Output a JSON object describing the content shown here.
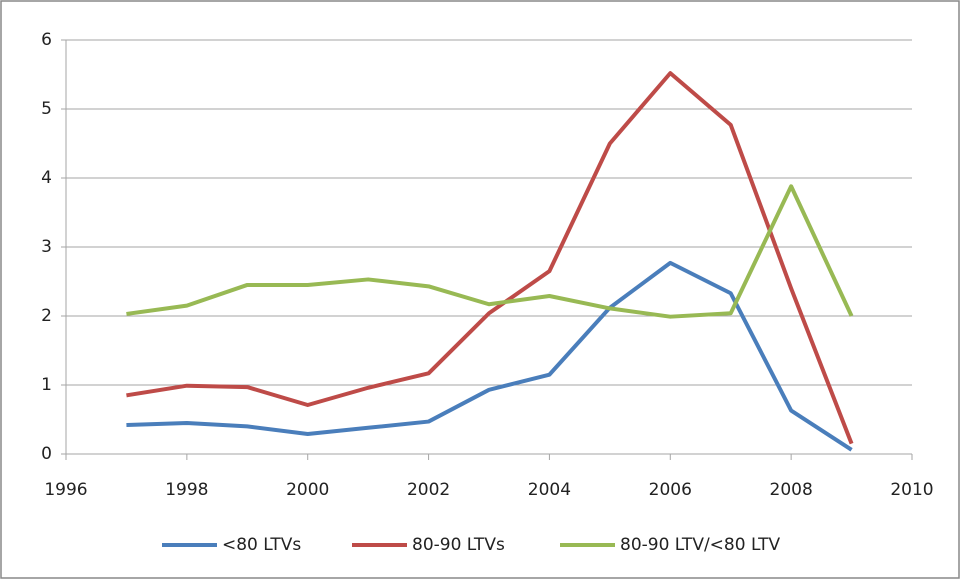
{
  "chart_data": {
    "type": "line",
    "x": [
      1997,
      1998,
      1999,
      2000,
      2001,
      2002,
      2003,
      2004,
      2005,
      2006,
      2007,
      2008,
      2009
    ],
    "series": [
      {
        "name": "<80 LTVs",
        "color": "#4a7ebb",
        "values": [
          0.42,
          0.45,
          0.4,
          0.29,
          0.38,
          0.47,
          0.93,
          1.15,
          2.12,
          2.77,
          2.33,
          0.63,
          0.06
        ]
      },
      {
        "name": "80-90 LTVs",
        "color": "#be4b48",
        "values": [
          0.85,
          0.99,
          0.97,
          0.71,
          0.96,
          1.17,
          2.04,
          2.65,
          4.5,
          5.52,
          4.77,
          2.4,
          0.15
        ]
      },
      {
        "name": "80-90 LTV/<80 LTV",
        "color": "#98b954",
        "values": [
          2.03,
          2.15,
          2.45,
          2.45,
          2.53,
          2.43,
          2.17,
          2.29,
          2.11,
          1.99,
          2.04,
          3.88,
          2.0
        ]
      }
    ],
    "xlim": [
      1996,
      2010
    ],
    "xticks": [
      1996,
      1998,
      2000,
      2002,
      2004,
      2006,
      2008,
      2010
    ],
    "ylim": [
      0,
      6
    ],
    "yticks": [
      0,
      1,
      2,
      3,
      4,
      5,
      6
    ],
    "grid": true,
    "legend": "bottom"
  }
}
